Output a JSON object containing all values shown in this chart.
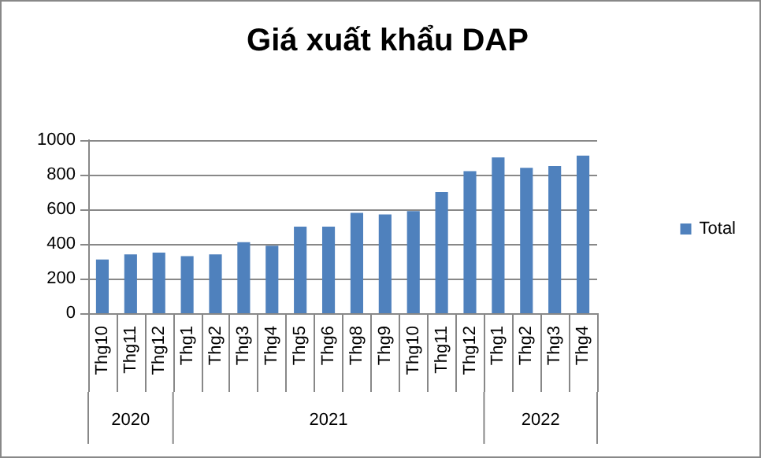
{
  "chart_data": {
    "type": "bar",
    "title": "Giá xuất khẩu DAP",
    "categories": [
      "Thg10",
      "Thg11",
      "Thg12",
      "Thg1",
      "Thg2",
      "Thg3",
      "Thg4",
      "Thg5",
      "Thg6",
      "Thg8",
      "Thg9",
      "Thg10",
      "Thg11",
      "Thg12",
      "Thg1",
      "Thg2",
      "Thg3",
      "Thg4"
    ],
    "series": [
      {
        "name": "Total",
        "color": "#4f81bd",
        "values": [
          310,
          340,
          350,
          330,
          340,
          410,
          390,
          500,
          500,
          580,
          570,
          590,
          700,
          820,
          900,
          840,
          850,
          910
        ]
      }
    ],
    "annotations": [
      "2020",
      "2021",
      "2022"
    ],
    "ylim": [
      0,
      1000
    ],
    "yticks": [
      0,
      200,
      400,
      600,
      800,
      1000
    ],
    "grid": "y",
    "legend": "right"
  }
}
